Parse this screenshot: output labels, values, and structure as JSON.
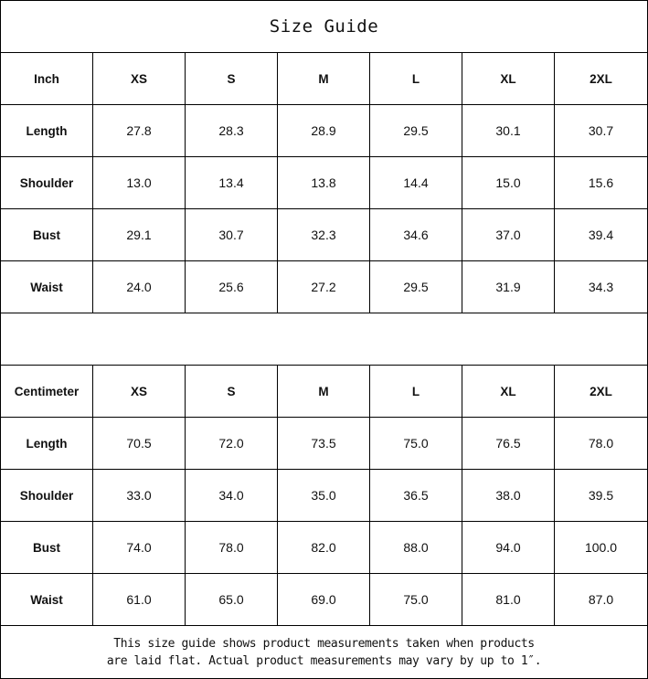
{
  "title": "Size Guide",
  "tables": [
    {
      "unit": "Inch",
      "sizes": [
        "XS",
        "S",
        "M",
        "L",
        "XL",
        "2XL"
      ],
      "rows": [
        {
          "label": "Length",
          "values": [
            "27.8",
            "28.3",
            "28.9",
            "29.5",
            "30.1",
            "30.7"
          ]
        },
        {
          "label": "Shoulder",
          "values": [
            "13.0",
            "13.4",
            "13.8",
            "14.4",
            "15.0",
            "15.6"
          ]
        },
        {
          "label": "Bust",
          "values": [
            "29.1",
            "30.7",
            "32.3",
            "34.6",
            "37.0",
            "39.4"
          ]
        },
        {
          "label": "Waist",
          "values": [
            "24.0",
            "25.6",
            "27.2",
            "29.5",
            "31.9",
            "34.3"
          ]
        }
      ]
    },
    {
      "unit": "Centimeter",
      "sizes": [
        "XS",
        "S",
        "M",
        "L",
        "XL",
        "2XL"
      ],
      "rows": [
        {
          "label": "Length",
          "values": [
            "70.5",
            "72.0",
            "73.5",
            "75.0",
            "76.5",
            "78.0"
          ]
        },
        {
          "label": "Shoulder",
          "values": [
            "33.0",
            "34.0",
            "35.0",
            "36.5",
            "38.0",
            "39.5"
          ]
        },
        {
          "label": "Bust",
          "values": [
            "74.0",
            "78.0",
            "82.0",
            "88.0",
            "94.0",
            "100.0"
          ]
        },
        {
          "label": "Waist",
          "values": [
            "61.0",
            "65.0",
            "69.0",
            "75.0",
            "81.0",
            "87.0"
          ]
        }
      ]
    }
  ],
  "note": {
    "line1": "This size guide shows product measurements taken when products",
    "line2": "are laid flat. Actual product measurements may vary by up to 1″."
  }
}
